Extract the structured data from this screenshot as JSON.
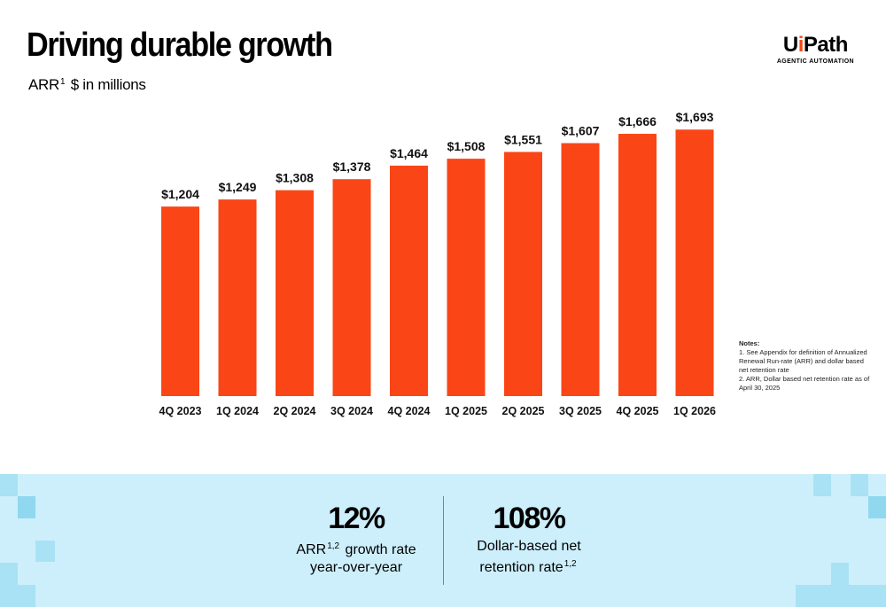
{
  "header": {
    "title": "Driving durable growth",
    "subtitle_prefix": "ARR",
    "subtitle_sup": "1",
    "subtitle_suffix": "$ in millions"
  },
  "logo": {
    "word_start": "U",
    "word_dot": "i",
    "word_end": "Path",
    "tagline": "AGENTIC AUTOMATION"
  },
  "chart_data": {
    "type": "bar",
    "categories": [
      "4Q 2023",
      "1Q 2024",
      "2Q 2024",
      "3Q 2024",
      "4Q 2024",
      "1Q 2025",
      "2Q 2025",
      "3Q 2025",
      "4Q 2025",
      "1Q 2026"
    ],
    "values": [
      1204,
      1249,
      1308,
      1378,
      1464,
      1508,
      1551,
      1607,
      1666,
      1693
    ],
    "value_labels": [
      "$1,204",
      "$1,249",
      "$1,308",
      "$1,378",
      "$1,464",
      "$1,508",
      "$1,551",
      "$1,607",
      "$1,666",
      "$1,693"
    ],
    "title": "",
    "xlabel": "",
    "ylabel": "",
    "ylim": [
      0,
      1790
    ],
    "bar_color": "#fa4616",
    "grid": false
  },
  "notes": {
    "heading": "Notes:",
    "items": [
      "1. See Appendix for definition of Annualized Renewal Run-rate (ARR) and dollar based net retention rate",
      "2. ARR, Dollar based net retention rate as of April 30, 2025"
    ]
  },
  "metrics": [
    {
      "value": "12%",
      "label_prefix": "ARR",
      "label_sup": "1,2",
      "label_rest": "growth rate",
      "label_line2": "year-over-year",
      "label_line2_sup": ""
    },
    {
      "value": "108%",
      "label_prefix": "",
      "label_sup": "",
      "label_rest": "Dollar-based net",
      "label_line2": "retention rate",
      "label_line2_sup": "1,2"
    }
  ],
  "colors": {
    "accent": "#fa4616",
    "band_background": "#cdeffb",
    "band_squares": "#a9e2f4"
  }
}
